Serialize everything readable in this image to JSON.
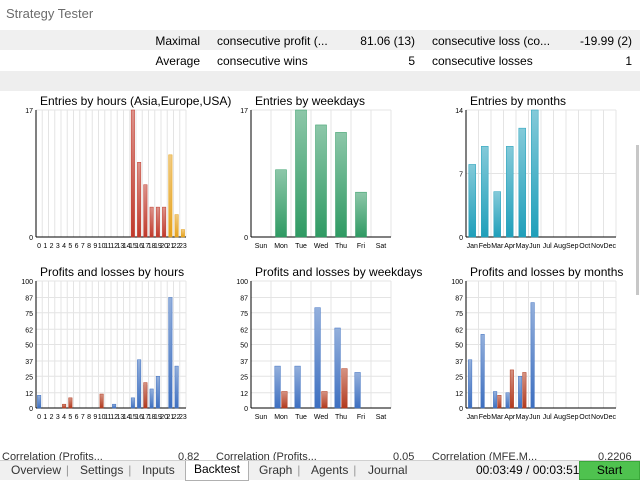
{
  "window": {
    "title": "Strategy Tester"
  },
  "stats": [
    {
      "label": "Maximal",
      "k1": "consecutive profit (...",
      "v1": "81.06 (13)",
      "k2": "consecutive loss (co...",
      "v2": "-19.99 (2)"
    },
    {
      "label": "Average",
      "k1": "consecutive wins",
      "v1": "5",
      "k2": "consecutive losses",
      "v2": "1"
    }
  ],
  "correlation": [
    {
      "label": "Correlation (Profits...",
      "value": "0.82"
    },
    {
      "label": "Correlation (Profits...",
      "value": "0.05"
    },
    {
      "label": "Correlation (MFE,M...",
      "value": "0.2206"
    }
  ],
  "tabs": [
    {
      "label": "Overview"
    },
    {
      "label": "Settings"
    },
    {
      "label": "Inputs"
    },
    {
      "label": "Backtest"
    },
    {
      "label": "Graph"
    },
    {
      "label": "Agents"
    },
    {
      "label": "Journal"
    }
  ],
  "active_tab": "Backtest",
  "timer": "00:03:49 / 00:03:51",
  "start_label": "Start",
  "colors": {
    "asia": "#c0392b",
    "europe": "#c0392b",
    "usa": "#e5a11a",
    "weekdays": "#2f9a63",
    "months": "#1f9fba",
    "profit": "#3d6fc0",
    "loss": "#b23a1e"
  },
  "chart_data": [
    {
      "type": "bar",
      "title": "Entries by hours (Asia,Europe,USA)",
      "categories": [
        "0",
        "1",
        "2",
        "3",
        "4",
        "5",
        "6",
        "7",
        "8",
        "9",
        "10",
        "11",
        "12",
        "13",
        "14",
        "15",
        "16",
        "17",
        "18",
        "19",
        "20",
        "21",
        "22",
        "23"
      ],
      "series": [
        {
          "values": [
            0,
            0,
            0,
            0,
            0,
            0,
            0,
            0,
            0,
            0,
            0,
            0,
            0,
            0,
            0,
            17,
            10,
            7,
            4,
            4,
            4,
            0,
            0,
            0
          ],
          "color": "#c0392b"
        },
        {
          "values": [
            0,
            0,
            0,
            0,
            0,
            0,
            0,
            0,
            0,
            0,
            0,
            0,
            0,
            0,
            0,
            0,
            0,
            0,
            0,
            0,
            0,
            11,
            3,
            1
          ],
          "color": "#e5a11a"
        }
      ],
      "yticks": [
        0,
        17
      ],
      "ylim": [
        0,
        17
      ]
    },
    {
      "type": "bar",
      "title": "Entries by weekdays",
      "categories": [
        "Sun",
        "Mon",
        "Tue",
        "Wed",
        "Thu",
        "Fri",
        "Sat"
      ],
      "series": [
        {
          "values": [
            0,
            9,
            17,
            15,
            14,
            6,
            0
          ],
          "color": "#2f9a63"
        }
      ],
      "yticks": [
        0,
        17
      ],
      "ylim": [
        0,
        17
      ]
    },
    {
      "type": "bar",
      "title": "Entries by months",
      "categories": [
        "Jan",
        "Feb",
        "Mar",
        "Apr",
        "May",
        "Jun",
        "Jul",
        "Aug",
        "Sep",
        "Oct",
        "Nov",
        "Dec"
      ],
      "series": [
        {
          "values": [
            8,
            10,
            5,
            10,
            12,
            14,
            0,
            0,
            0,
            0,
            0,
            0
          ],
          "color": "#1f9fba"
        }
      ],
      "yticks": [
        0,
        7,
        14
      ],
      "ylim": [
        0,
        14
      ]
    },
    {
      "type": "bar",
      "title": "Profits and losses by hours",
      "categories": [
        "0",
        "1",
        "2",
        "3",
        "4",
        "5",
        "6",
        "7",
        "8",
        "9",
        "10",
        "11",
        "12",
        "13",
        "14",
        "15",
        "16",
        "17",
        "18",
        "19",
        "20",
        "21",
        "22",
        "23"
      ],
      "series": [
        {
          "values": [
            10,
            0,
            0,
            0,
            0,
            0,
            0,
            0,
            0,
            0,
            0,
            0,
            3,
            0,
            0,
            8,
            38,
            18,
            15,
            25,
            0,
            87,
            33,
            0
          ],
          "color": "#3d6fc0"
        },
        {
          "values": [
            0,
            0,
            0,
            0,
            3,
            8,
            0,
            0,
            0,
            0,
            11,
            0,
            0,
            0,
            0,
            0,
            0,
            20,
            0,
            0,
            0,
            0,
            0,
            0
          ],
          "color": "#b23a1e"
        }
      ],
      "yticks": [
        0,
        12,
        25,
        37,
        50,
        62,
        75,
        87,
        100
      ],
      "ylim": [
        0,
        100
      ]
    },
    {
      "type": "bar",
      "title": "Profits and losses by weekdays",
      "categories": [
        "Sun",
        "Mon",
        "Tue",
        "Wed",
        "Thu",
        "Fri",
        "Sat"
      ],
      "series": [
        {
          "name": "profit",
          "values": [
            0,
            33,
            33,
            79,
            63,
            28,
            0
          ],
          "color": "#3d6fc0"
        },
        {
          "name": "loss",
          "values": [
            0,
            13,
            0,
            13,
            31,
            0,
            0
          ],
          "color": "#b23a1e"
        }
      ],
      "yticks": [
        0,
        12,
        25,
        37,
        50,
        62,
        75,
        87,
        100
      ],
      "ylim": [
        0,
        100
      ]
    },
    {
      "type": "bar",
      "title": "Profits and losses by months",
      "categories": [
        "Jan",
        "Feb",
        "Mar",
        "Apr",
        "May",
        "Jun",
        "Jul",
        "Aug",
        "Sep",
        "Oct",
        "Nov",
        "Dec"
      ],
      "series": [
        {
          "name": "profit",
          "values": [
            38,
            58,
            13,
            12,
            25,
            83,
            0,
            0,
            0,
            0,
            0,
            0
          ],
          "color": "#3d6fc0"
        },
        {
          "name": "loss",
          "values": [
            0,
            0,
            10,
            30,
            28,
            0,
            0,
            0,
            0,
            0,
            0,
            0
          ],
          "color": "#b23a1e"
        }
      ],
      "yticks": [
        0,
        12,
        25,
        37,
        50,
        62,
        75,
        87,
        100
      ],
      "ylim": [
        0,
        100
      ]
    }
  ]
}
